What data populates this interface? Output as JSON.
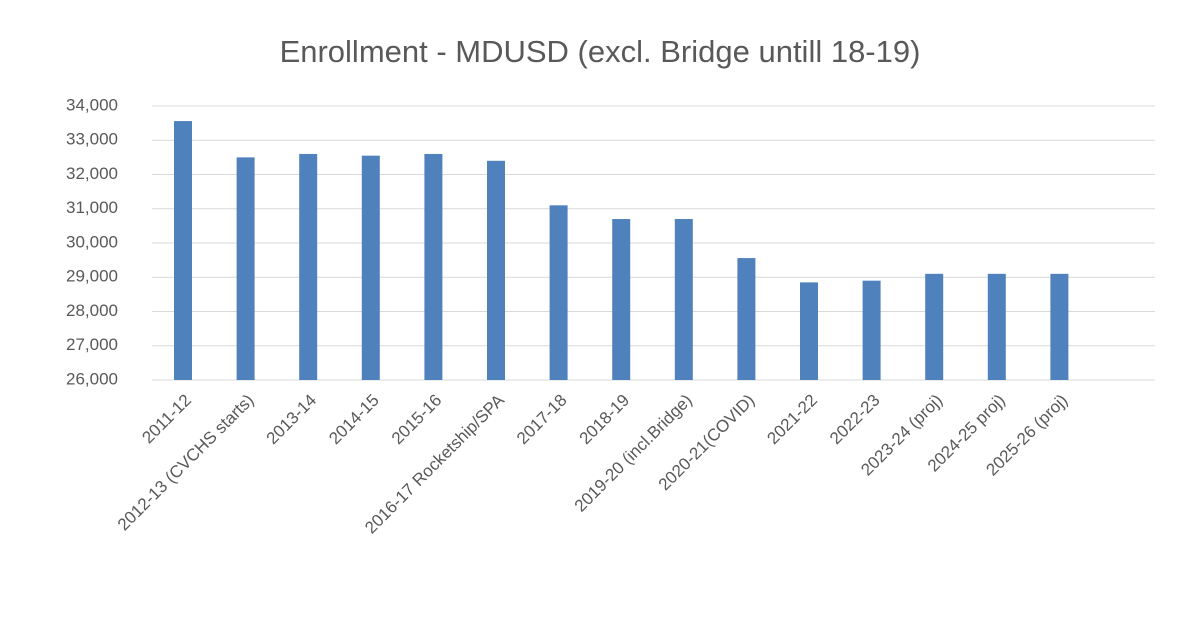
{
  "chart_data": {
    "type": "bar",
    "title": "Enrollment - MDUSD (excl. Bridge untill 18-19)",
    "categories": [
      "2011-12",
      "2012-13 (CVCHS starts)",
      "2013-14",
      "2014-15",
      "2015-16",
      "2016-17 Rocketship/SPA",
      "2017-18",
      "2018-19",
      "2019-20 (incl.Bridge)",
      "2020-21(COVID)",
      "2021-22",
      "2022-23",
      "2023-24 (proj)",
      "2024-25 proj)",
      "2025-26 (proj)"
    ],
    "values": [
      33560,
      32500,
      32600,
      32550,
      32600,
      32400,
      31100,
      30700,
      30700,
      29560,
      28850,
      28900,
      29100,
      29100,
      29100
    ],
    "color": "#4f81bd",
    "ylim": [
      26000,
      34000
    ],
    "yticks": [
      {
        "value": 26000,
        "label": "26,000"
      },
      {
        "value": 27000,
        "label": "27,000"
      },
      {
        "value": 28000,
        "label": "28,000"
      },
      {
        "value": 29000,
        "label": "29,000"
      },
      {
        "value": 30000,
        "label": "30,000"
      },
      {
        "value": 31000,
        "label": "31,000"
      },
      {
        "value": 32000,
        "label": "32,000"
      },
      {
        "value": 33000,
        "label": "33,000"
      },
      {
        "value": 34000,
        "label": "34,000"
      }
    ],
    "grid": true
  }
}
